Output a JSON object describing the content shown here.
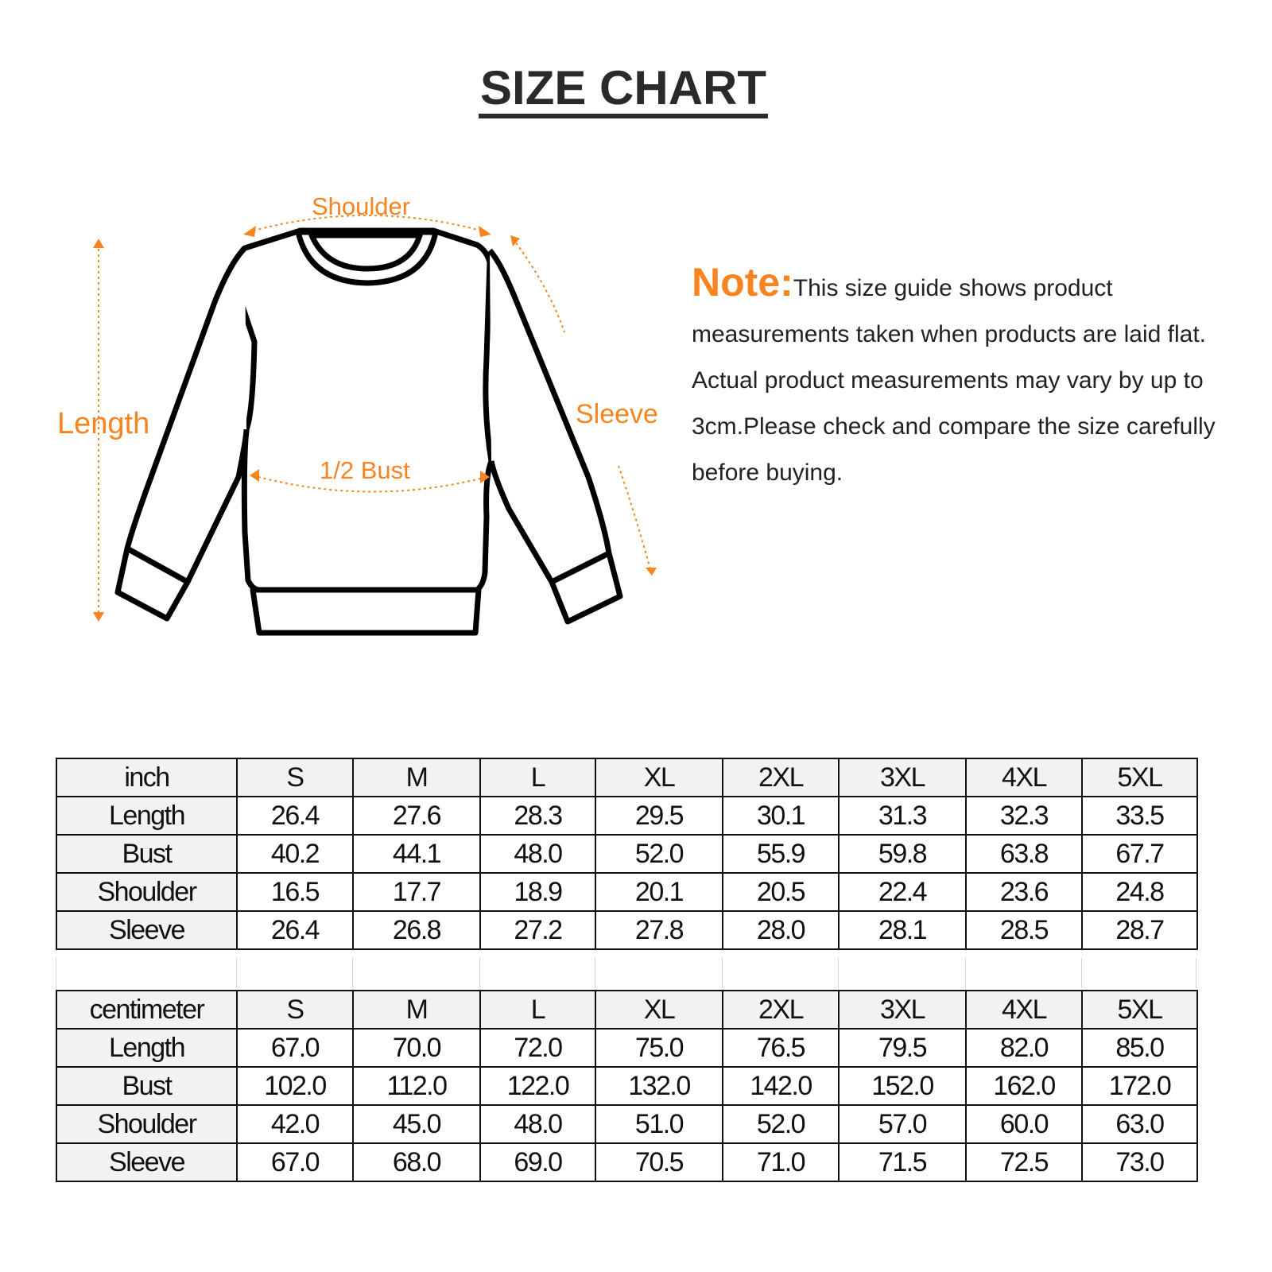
{
  "title": "SIZE CHART",
  "diagram": {
    "shoulder": "Shoulder",
    "length": "Length",
    "sleeve": "Sleeve",
    "bust": "1/2 Bust",
    "accent_color": "#f7841e"
  },
  "note": {
    "label": "Note:",
    "text": "This size guide shows product measurements taken when products are laid flat. Actual product measurements may vary by up to 3cm.Please check and compare the size carefully before buying."
  },
  "tables": [
    {
      "unit": "inch",
      "sizes": [
        "S",
        "M",
        "L",
        "XL",
        "2XL",
        "3XL",
        "4XL",
        "5XL"
      ],
      "rows": [
        {
          "label": "Length",
          "values": [
            "26.4",
            "27.6",
            "28.3",
            "29.5",
            "30.1",
            "31.3",
            "32.3",
            "33.5"
          ]
        },
        {
          "label": "Bust",
          "values": [
            "40.2",
            "44.1",
            "48.0",
            "52.0",
            "55.9",
            "59.8",
            "63.8",
            "67.7"
          ]
        },
        {
          "label": "Shoulder",
          "values": [
            "16.5",
            "17.7",
            "18.9",
            "20.1",
            "20.5",
            "22.4",
            "23.6",
            "24.8"
          ]
        },
        {
          "label": "Sleeve",
          "values": [
            "26.4",
            "26.8",
            "27.2",
            "27.8",
            "28.0",
            "28.1",
            "28.5",
            "28.7"
          ]
        }
      ]
    },
    {
      "unit": "centimeter",
      "sizes": [
        "S",
        "M",
        "L",
        "XL",
        "2XL",
        "3XL",
        "4XL",
        "5XL"
      ],
      "rows": [
        {
          "label": "Length",
          "values": [
            "67.0",
            "70.0",
            "72.0",
            "75.0",
            "76.5",
            "79.5",
            "82.0",
            "85.0"
          ]
        },
        {
          "label": "Bust",
          "values": [
            "102.0",
            "112.0",
            "122.0",
            "132.0",
            "142.0",
            "152.0",
            "162.0",
            "172.0"
          ]
        },
        {
          "label": "Shoulder",
          "values": [
            "42.0",
            "45.0",
            "48.0",
            "51.0",
            "52.0",
            "57.0",
            "60.0",
            "63.0"
          ]
        },
        {
          "label": "Sleeve",
          "values": [
            "67.0",
            "68.0",
            "69.0",
            "70.5",
            "71.0",
            "71.5",
            "72.5",
            "73.0"
          ]
        }
      ]
    }
  ]
}
